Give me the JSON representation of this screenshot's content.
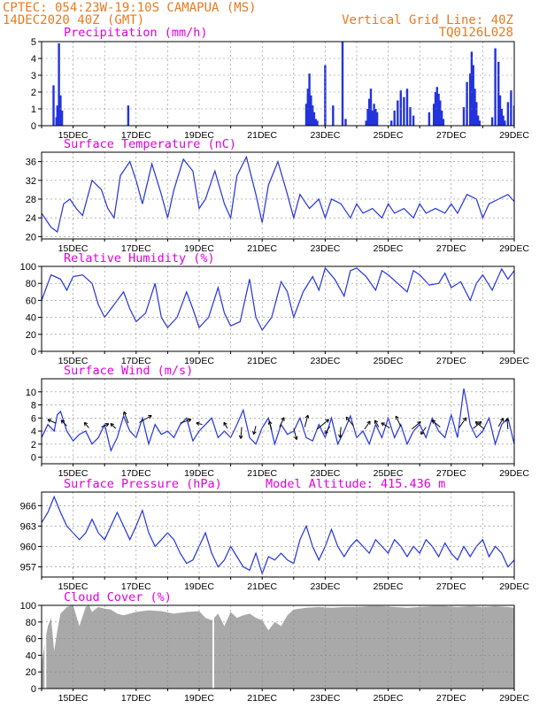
{
  "header": {
    "line1_left": "CPTEC:   054:23W-19:10S   CAMAPUA (MS)",
    "line2_left": "14DEC2020 40Z (GMT)",
    "line1_right": "Vertical Grid Line: 40Z",
    "line2_right": "TQ0126L028"
  },
  "colors": {
    "header": "#e87a1e",
    "title": "#e000e0",
    "series": "#2233dd",
    "cloud": "#a9a9a9",
    "grid": "#888888"
  },
  "chart_data": [
    {
      "type": "bar",
      "title": "Precipitation (mm/h)",
      "ylim": [
        0,
        5
      ],
      "yticks": [
        0,
        1,
        2,
        3,
        4,
        5
      ],
      "xticks": [
        "15DEC",
        "17DEC",
        "19DEC",
        "21DEC",
        "23DEC",
        "25DEC",
        "27DEC",
        "29DEC"
      ],
      "xlim_days": [
        14,
        29
      ],
      "series": [
        {
          "x": [
            14.38,
            14.47,
            14.5,
            14.55,
            14.6,
            14.65,
            16.75,
            22.4,
            22.45,
            22.5,
            22.55,
            22.6,
            22.65,
            22.7,
            22.75,
            23.0,
            23.25,
            23.55,
            23.65,
            24.3,
            24.35,
            24.4,
            24.45,
            24.5,
            24.55,
            24.6,
            24.65,
            25.1,
            25.2,
            25.3,
            25.4,
            25.5,
            25.6,
            25.7,
            25.8,
            26.3,
            26.45,
            26.5,
            26.55,
            26.6,
            26.65,
            26.7,
            26.75,
            27.4,
            27.5,
            27.6,
            27.65,
            27.7,
            27.75,
            27.8,
            27.85,
            27.9,
            28.3,
            28.4,
            28.5,
            28.55,
            28.6,
            28.65,
            28.7,
            28.8,
            28.9,
            29.0
          ],
          "values": [
            2.4,
            0.5,
            1.2,
            4.9,
            1.8,
            0.9,
            1.2,
            1.3,
            2.2,
            3.1,
            1.8,
            1.2,
            0.8,
            0.4,
            0.3,
            3.6,
            1.2,
            5.0,
            0.4,
            0.3,
            1.0,
            1.6,
            2.2,
            0.9,
            1.3,
            1.0,
            0.8,
            0.3,
            0.9,
            1.5,
            2.1,
            1.7,
            2.2,
            1.1,
            0.6,
            0.8,
            1.3,
            2.0,
            2.3,
            1.9,
            1.5,
            0.9,
            0.4,
            1.1,
            2.6,
            3.1,
            4.4,
            3.6,
            2.2,
            1.4,
            0.6,
            0.3,
            0.5,
            4.6,
            3.8,
            1.8,
            1.0,
            0.6,
            0.3,
            1.4,
            2.1,
            1.2
          ]
        }
      ]
    },
    {
      "type": "line",
      "title": "Surface Temperature (nC)",
      "ylim": [
        19.5,
        38
      ],
      "yticks": [
        20,
        24,
        28,
        32,
        36
      ],
      "xticks": [
        "15DEC",
        "17DEC",
        "19DEC",
        "21DEC",
        "23DEC",
        "25DEC",
        "27DEC",
        "29DEC"
      ],
      "xlim_days": [
        14,
        29
      ],
      "series": [
        {
          "x": [
            14.0,
            14.3,
            14.5,
            14.7,
            14.9,
            15.1,
            15.3,
            15.6,
            15.9,
            16.1,
            16.3,
            16.5,
            16.8,
            17.0,
            17.2,
            17.5,
            17.8,
            18.0,
            18.2,
            18.5,
            18.8,
            19.0,
            19.2,
            19.5,
            19.8,
            20.0,
            20.2,
            20.5,
            20.8,
            21.0,
            21.2,
            21.5,
            21.8,
            22.0,
            22.2,
            22.5,
            22.8,
            23.0,
            23.2,
            23.5,
            23.8,
            24.0,
            24.2,
            24.5,
            24.8,
            25.0,
            25.2,
            25.5,
            25.8,
            26.0,
            26.2,
            26.5,
            26.8,
            27.0,
            27.2,
            27.5,
            27.8,
            28.0,
            28.2,
            28.5,
            28.8,
            29.0
          ],
          "values": [
            25,
            22,
            21,
            27,
            28,
            26,
            24.5,
            32,
            30,
            26,
            24,
            33,
            36,
            32,
            27,
            35.5,
            29,
            24,
            30,
            36.5,
            34,
            26,
            28,
            34,
            27,
            24,
            33,
            37,
            29,
            23,
            31,
            36,
            29,
            24,
            29,
            26,
            28,
            24,
            28,
            27,
            24,
            27,
            25,
            26,
            24,
            27,
            25,
            26,
            24,
            27,
            25,
            26,
            25,
            27,
            25,
            29,
            28,
            24,
            27,
            28,
            29,
            27.5
          ]
        }
      ]
    },
    {
      "type": "line",
      "title": "Relative Humidity (%)",
      "ylim": [
        0,
        100
      ],
      "yticks": [
        0,
        20,
        40,
        60,
        80,
        100
      ],
      "xticks": [
        "15DEC",
        "17DEC",
        "19DEC",
        "21DEC",
        "23DEC",
        "25DEC",
        "27DEC",
        "29DEC"
      ],
      "xlim_days": [
        14,
        29
      ],
      "series": [
        {
          "x": [
            14.0,
            14.3,
            14.6,
            14.8,
            15.0,
            15.3,
            15.6,
            15.8,
            16.0,
            16.3,
            16.6,
            16.8,
            17.0,
            17.3,
            17.6,
            17.8,
            18.0,
            18.3,
            18.6,
            18.8,
            19.0,
            19.3,
            19.6,
            19.8,
            20.0,
            20.3,
            20.6,
            20.8,
            21.0,
            21.3,
            21.6,
            21.8,
            22.0,
            22.3,
            22.6,
            22.8,
            23.0,
            23.3,
            23.6,
            23.8,
            24.0,
            24.3,
            24.6,
            24.8,
            25.0,
            25.3,
            25.6,
            25.8,
            26.0,
            26.3,
            26.6,
            26.8,
            27.0,
            27.3,
            27.6,
            27.8,
            28.0,
            28.3,
            28.6,
            28.8,
            29.0
          ],
          "values": [
            60,
            90,
            85,
            72,
            88,
            90,
            80,
            55,
            40,
            55,
            70,
            50,
            35,
            45,
            80,
            40,
            28,
            40,
            70,
            50,
            28,
            40,
            75,
            45,
            30,
            35,
            85,
            40,
            25,
            40,
            82,
            70,
            40,
            70,
            88,
            72,
            98,
            85,
            65,
            95,
            98,
            88,
            72,
            95,
            90,
            80,
            70,
            95,
            90,
            78,
            80,
            92,
            75,
            82,
            60,
            80,
            90,
            72,
            97,
            85,
            95
          ]
        }
      ]
    },
    {
      "type": "line",
      "title": "Surface Wind (m/s)",
      "ylim": [
        -1,
        12
      ],
      "yticks": [
        0,
        2,
        4,
        6,
        8,
        10
      ],
      "xticks": [
        "15DEC",
        "17DEC",
        "19DEC",
        "21DEC",
        "23DEC",
        "25DEC",
        "27DEC",
        "29DEC"
      ],
      "xlim_days": [
        14,
        29
      ],
      "series": [
        {
          "x": [
            14.0,
            14.2,
            14.4,
            14.5,
            14.6,
            14.8,
            15.0,
            15.2,
            15.4,
            15.6,
            15.8,
            16.0,
            16.2,
            16.4,
            16.6,
            16.8,
            17.0,
            17.2,
            17.4,
            17.6,
            17.8,
            18.0,
            18.2,
            18.4,
            18.6,
            18.8,
            19.0,
            19.2,
            19.4,
            19.6,
            19.8,
            20.0,
            20.2,
            20.4,
            20.6,
            20.8,
            21.0,
            21.2,
            21.4,
            21.6,
            21.8,
            22.0,
            22.2,
            22.4,
            22.6,
            22.8,
            23.0,
            23.2,
            23.4,
            23.6,
            23.8,
            24.0,
            24.2,
            24.4,
            24.6,
            24.8,
            25.0,
            25.2,
            25.4,
            25.6,
            25.8,
            26.0,
            26.2,
            26.4,
            26.6,
            26.8,
            27.0,
            27.2,
            27.4,
            27.5,
            27.6,
            27.8,
            28.0,
            28.2,
            28.4,
            28.6,
            28.8,
            29.0
          ],
          "values": [
            3,
            5,
            4,
            6.5,
            7,
            4,
            2.5,
            3.5,
            4,
            2,
            3,
            5,
            1,
            3,
            6.3,
            4,
            3,
            6,
            2,
            5,
            3.5,
            4,
            3,
            5,
            6,
            2.5,
            4,
            5,
            6,
            3,
            4,
            3,
            5,
            7.2,
            3,
            2,
            4.5,
            6,
            2,
            5,
            3.5,
            4,
            6,
            3,
            2.5,
            5,
            3,
            6,
            2,
            4,
            6.3,
            3,
            4,
            2,
            5,
            3,
            6,
            3,
            5,
            2,
            4,
            5,
            3,
            6,
            4,
            3,
            6.5,
            3,
            10.5,
            8,
            5,
            3,
            4,
            6,
            2,
            5,
            6,
            2
          ]
        }
      ],
      "wind_arrows": {
        "x": [
          14.45,
          14.8,
          15.5,
          15.9,
          16.35,
          16.75,
          17.1,
          18.4,
          19.1,
          19.9,
          20.35,
          20.8,
          21.3,
          21.55,
          22.0,
          22.35,
          22.75,
          23.15,
          23.5,
          23.9,
          24.25,
          24.7,
          25.05,
          25.4,
          25.75,
          26.2,
          26.65,
          27.25,
          27.7,
          28.05,
          28.5,
          28.8
        ],
        "values": [
          5.2,
          4.8,
          4.5,
          4.6,
          4.4,
          5.2,
          5.3,
          5.2,
          5.0,
          4.4,
          4.6,
          4.8,
          4.2,
          4.6,
          4.4,
          4.6,
          4.3,
          4.7,
          4.6,
          4.8,
          4.3,
          4.6,
          4.5,
          4.7,
          4.3,
          4.6,
          4.6,
          4.5,
          4.4,
          4.3,
          4.7,
          4.3
        ],
        "dir_deg": [
          155,
          135,
          130,
          25,
          135,
          110,
          30,
          20,
          165,
          120,
          265,
          255,
          105,
          65,
          285,
          75,
          40,
          235,
          265,
          130,
          55,
          120,
          150,
          115,
          40,
          235,
          140,
          55,
          40,
          140,
          60,
          95
        ],
        "len_px": [
          10,
          9,
          8,
          9,
          8,
          14,
          16,
          13,
          7,
          8,
          13,
          10,
          10,
          12,
          13,
          14,
          17,
          10,
          12,
          13,
          11,
          9,
          11,
          13,
          13,
          10,
          12,
          14,
          12,
          13,
          11,
          12
        ]
      }
    },
    {
      "type": "line",
      "title": "Surface Pressure (hPa)",
      "subtitle": "Model Altitude: 415.436 m",
      "ylim": [
        955.5,
        968
      ],
      "yticks": [
        957,
        960,
        963,
        966
      ],
      "xticks": [
        "15DEC",
        "17DEC",
        "19DEC",
        "21DEC",
        "23DEC",
        "25DEC",
        "27DEC",
        "29DEC"
      ],
      "xlim_days": [
        14,
        29
      ],
      "series": [
        {
          "x": [
            14.0,
            14.2,
            14.4,
            14.6,
            14.8,
            15.0,
            15.2,
            15.4,
            15.6,
            15.8,
            16.0,
            16.2,
            16.4,
            16.6,
            16.8,
            17.0,
            17.2,
            17.4,
            17.6,
            17.8,
            18.0,
            18.2,
            18.4,
            18.6,
            18.8,
            19.0,
            19.2,
            19.4,
            19.6,
            19.8,
            20.0,
            20.2,
            20.4,
            20.6,
            20.8,
            21.0,
            21.2,
            21.4,
            21.6,
            21.8,
            22.0,
            22.2,
            22.4,
            22.6,
            22.8,
            23.0,
            23.2,
            23.4,
            23.6,
            23.8,
            24.0,
            24.2,
            24.4,
            24.6,
            24.8,
            25.0,
            25.2,
            25.4,
            25.6,
            25.8,
            26.0,
            26.2,
            26.4,
            26.6,
            26.8,
            27.0,
            27.2,
            27.4,
            27.6,
            27.8,
            28.0,
            28.2,
            28.4,
            28.6,
            28.8,
            29.0
          ],
          "values": [
            963.5,
            965,
            967.3,
            965,
            963,
            962,
            961,
            962,
            964,
            962,
            961,
            963,
            965,
            963,
            961,
            963,
            965.3,
            962,
            960,
            961,
            962,
            961,
            959,
            957.5,
            958,
            960,
            962,
            959,
            957,
            958,
            960,
            958.5,
            957,
            956.5,
            959,
            956,
            958.5,
            958,
            959,
            958,
            957.5,
            961,
            963,
            960,
            958,
            960,
            962.5,
            960,
            958.5,
            960,
            961,
            960,
            959,
            961,
            960,
            959,
            961,
            960,
            958.5,
            960,
            959,
            961,
            960,
            958.5,
            960.5,
            959,
            958,
            960,
            958.5,
            960,
            961,
            958.5,
            960,
            959,
            957,
            958
          ]
        }
      ]
    },
    {
      "type": "area",
      "title": "Cloud Cover (%)",
      "ylim": [
        0,
        100
      ],
      "yticks": [
        0,
        20,
        40,
        60,
        80,
        100
      ],
      "xticks": [
        "15DEC",
        "17DEC",
        "19DEC",
        "21DEC",
        "23DEC",
        "25DEC",
        "27DEC",
        "29DEC"
      ],
      "xlim_days": [
        14,
        29
      ],
      "series": [
        {
          "x": [
            14.0,
            14.1,
            14.2,
            14.3,
            14.4,
            14.5,
            14.6,
            14.8,
            15.0,
            15.2,
            15.4,
            15.5,
            15.6,
            15.8,
            16.0,
            16.2,
            16.4,
            16.6,
            17.0,
            17.4,
            17.8,
            18.2,
            18.6,
            19.0,
            19.2,
            19.4,
            19.6,
            19.8,
            20.0,
            20.2,
            20.4,
            20.6,
            20.8,
            21.0,
            21.2,
            21.4,
            21.6,
            21.8,
            22.0,
            22.4,
            22.8,
            23.2,
            23.6,
            24.0,
            24.4,
            24.8,
            25.2,
            25.6,
            26.0,
            26.4,
            26.8,
            27.2,
            27.6,
            28.0,
            28.4,
            28.8,
            29.0
          ],
          "values": [
            30,
            55,
            75,
            85,
            45,
            70,
            90,
            98,
            100,
            75,
            98,
            100,
            92,
            98,
            96,
            95,
            90,
            88,
            92,
            94,
            93,
            90,
            92,
            93,
            85,
            82,
            90,
            75,
            92,
            85,
            88,
            90,
            85,
            82,
            70,
            80,
            75,
            88,
            95,
            97,
            98,
            97,
            98,
            98,
            99,
            99,
            98,
            97,
            98,
            99,
            99,
            98,
            99,
            98,
            99,
            98,
            97
          ]
        }
      ],
      "gaps_x": [
        14.12,
        19.45
      ]
    }
  ]
}
